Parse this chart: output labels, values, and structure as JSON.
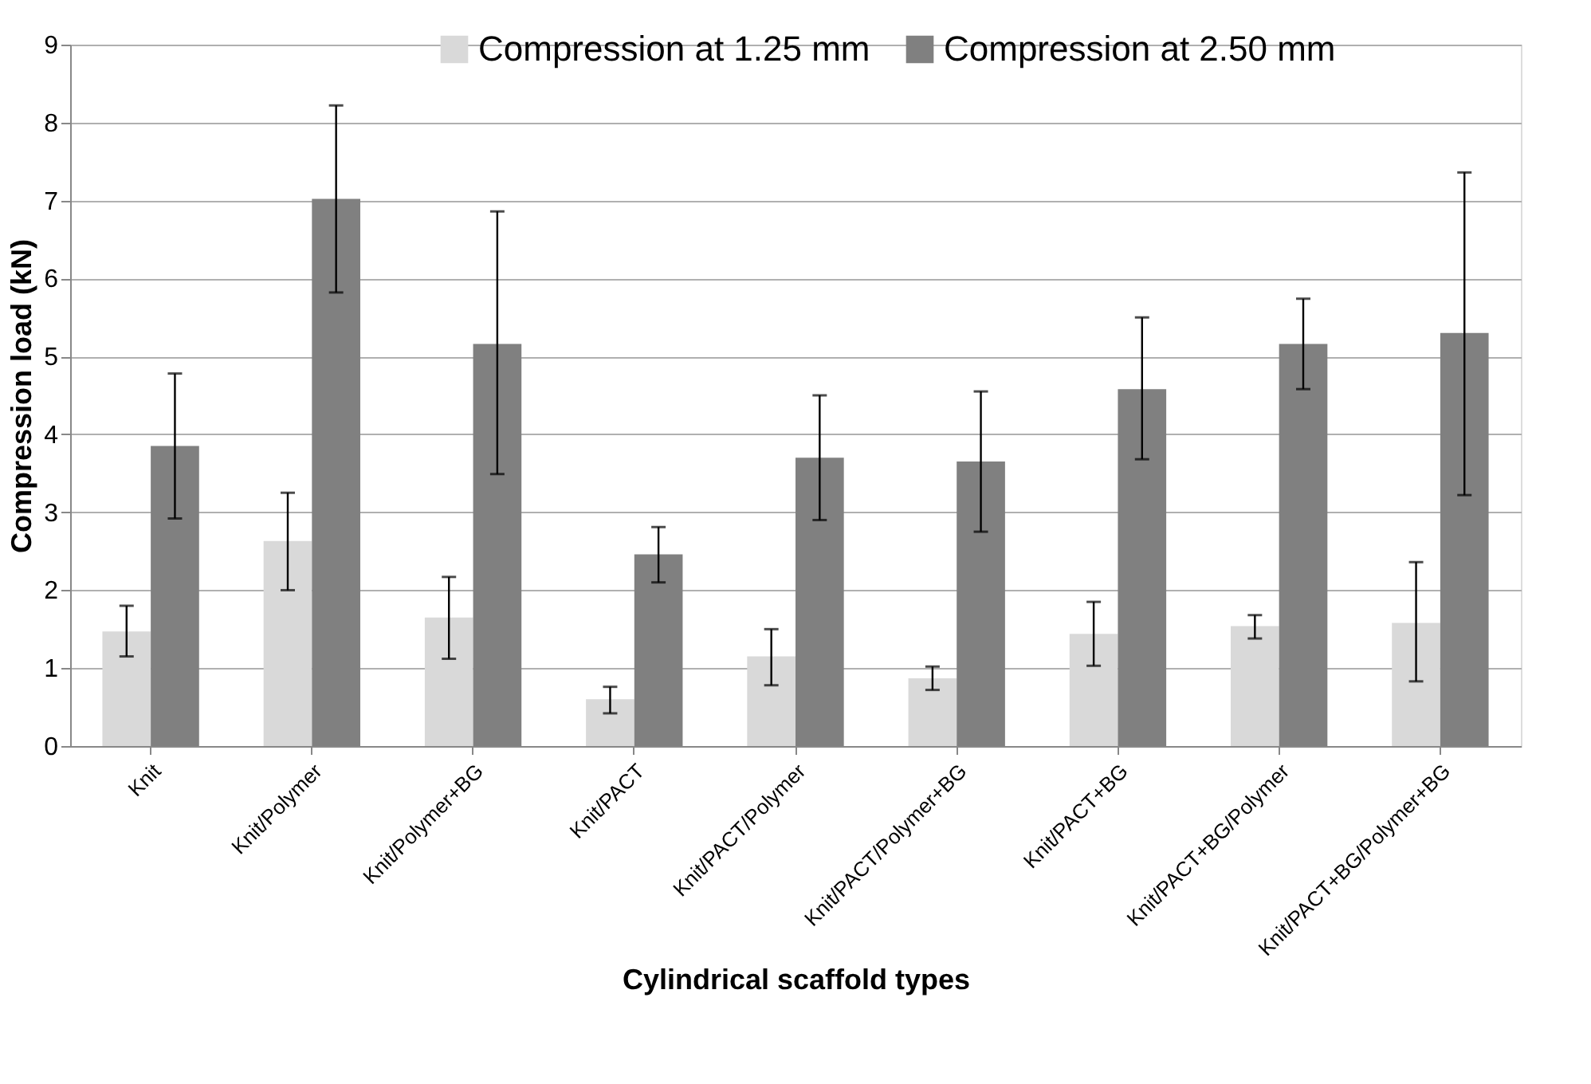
{
  "chart_data": {
    "type": "bar",
    "xlabel": "Cylindrical scaffold types",
    "ylabel": "Compression load (kN)",
    "categories": [
      "Knit",
      "Knit/Polymer",
      "Knit/Polymer+BG",
      "Knit/PACT",
      "Knit/PACT/Polymer",
      "Knit/PACT/Polymer+BG",
      "Knit/PACT+BG",
      "Knit/PACT+BG/Polymer",
      "Knit/PACT+BG/Polymer+BG"
    ],
    "series": [
      {
        "name": "Compression at 1.25 mm",
        "color": "#d9d9d9",
        "values": [
          1.47,
          2.63,
          1.65,
          0.6,
          1.15,
          0.87,
          1.44,
          1.54,
          1.58
        ],
        "errors": [
          [
            1.15,
            1.8
          ],
          [
            2.0,
            3.25
          ],
          [
            1.12,
            2.17
          ],
          [
            0.42,
            0.76
          ],
          [
            0.78,
            1.5
          ],
          [
            0.72,
            1.02
          ],
          [
            1.03,
            1.85
          ],
          [
            1.38,
            1.68
          ],
          [
            0.83,
            2.36
          ]
        ]
      },
      {
        "name": "Compression at 2.50 mm",
        "color": "#808080",
        "values": [
          3.85,
          7.02,
          5.16,
          2.46,
          3.7,
          3.65,
          4.58,
          5.16,
          5.3
        ],
        "errors": [
          [
            2.92,
            4.78
          ],
          [
            5.82,
            8.22
          ],
          [
            3.49,
            6.86
          ],
          [
            2.1,
            2.81
          ],
          [
            2.9,
            4.5
          ],
          [
            2.75,
            4.55
          ],
          [
            3.68,
            5.5
          ],
          [
            4.58,
            5.74
          ],
          [
            3.22,
            7.36
          ]
        ]
      }
    ],
    "ylim": [
      0,
      9
    ],
    "yticks": [
      0,
      1,
      2,
      3,
      4,
      5,
      6,
      7,
      8,
      9
    ],
    "grid": "y",
    "legend": "top"
  }
}
